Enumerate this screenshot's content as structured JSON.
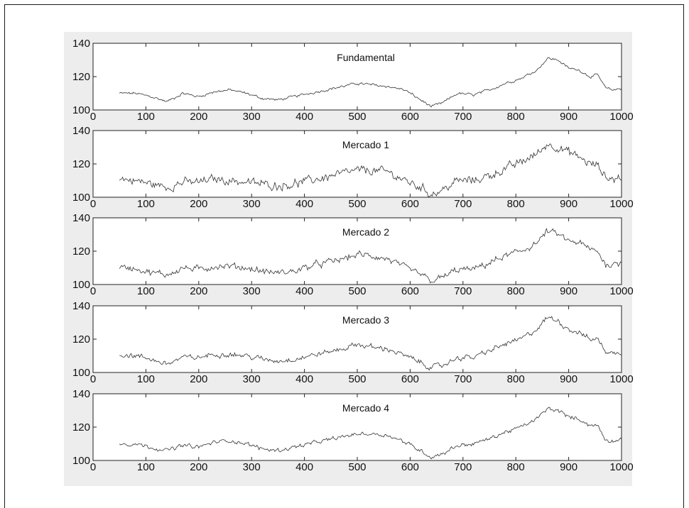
{
  "chart_data": [
    {
      "type": "line",
      "title": "Fundamental",
      "xlim": [
        0,
        1000
      ],
      "ylim": [
        100,
        140
      ],
      "xticks": [
        0,
        100,
        200,
        300,
        400,
        500,
        600,
        700,
        800,
        900,
        1000
      ],
      "yticks": [
        100,
        120,
        140
      ],
      "grid": false,
      "x": [
        50,
        80,
        110,
        140,
        170,
        200,
        230,
        260,
        290,
        320,
        350,
        380,
        410,
        440,
        470,
        500,
        530,
        560,
        590,
        620,
        640,
        660,
        690,
        720,
        750,
        780,
        810,
        840,
        860,
        880,
        900,
        920,
        940,
        955,
        970,
        985,
        1000
      ],
      "y": [
        110,
        110,
        108,
        105,
        110,
        108,
        111,
        112,
        110,
        107,
        106,
        108,
        110,
        112,
        114,
        116,
        115,
        114,
        112,
        106,
        102,
        104,
        110,
        109,
        112,
        116,
        119,
        124,
        131,
        130,
        125,
        124,
        120,
        121,
        113,
        112,
        113
      ],
      "noise": 0.8
    },
    {
      "type": "line",
      "title": "Mercado 1",
      "xlim": [
        0,
        1000
      ],
      "ylim": [
        100,
        140
      ],
      "xticks": [
        0,
        100,
        200,
        300,
        400,
        500,
        600,
        700,
        800,
        900,
        1000
      ],
      "yticks": [
        100,
        120,
        140
      ],
      "grid": false,
      "x": [
        50,
        80,
        110,
        140,
        170,
        200,
        230,
        260,
        290,
        320,
        350,
        380,
        410,
        440,
        470,
        500,
        530,
        560,
        590,
        620,
        640,
        660,
        690,
        720,
        750,
        780,
        810,
        840,
        860,
        880,
        900,
        920,
        940,
        955,
        970,
        985,
        1000
      ],
      "y": [
        111,
        110,
        108,
        106,
        109,
        109,
        111,
        110,
        109,
        108,
        107,
        108,
        110,
        112,
        114,
        116,
        116,
        115,
        110,
        106,
        102,
        104,
        110,
        110,
        113,
        117,
        121,
        126,
        132,
        130,
        127,
        124,
        120,
        119,
        112,
        111,
        112
      ],
      "noise": 2.6
    },
    {
      "type": "line",
      "title": "Mercado 2",
      "xlim": [
        0,
        1000
      ],
      "ylim": [
        100,
        140
      ],
      "xticks": [
        0,
        100,
        200,
        300,
        400,
        500,
        600,
        700,
        800,
        900,
        1000
      ],
      "yticks": [
        100,
        120,
        140
      ],
      "grid": false,
      "x": [
        50,
        80,
        110,
        140,
        170,
        200,
        230,
        260,
        290,
        320,
        350,
        380,
        410,
        440,
        470,
        500,
        530,
        560,
        590,
        620,
        640,
        660,
        690,
        720,
        750,
        780,
        810,
        840,
        860,
        880,
        900,
        920,
        940,
        955,
        970,
        985,
        1000
      ],
      "y": [
        110,
        110,
        107,
        106,
        110,
        109,
        111,
        111,
        110,
        108,
        107,
        108,
        111,
        113,
        115,
        118,
        117,
        115,
        110,
        106,
        102,
        104,
        109,
        109,
        113,
        117,
        120,
        125,
        132,
        130,
        126,
        125,
        121,
        120,
        112,
        112,
        113
      ],
      "noise": 2.0
    },
    {
      "type": "line",
      "title": "Mercado 3",
      "xlim": [
        0,
        1000
      ],
      "ylim": [
        100,
        140
      ],
      "xticks": [
        0,
        100,
        200,
        300,
        400,
        500,
        600,
        700,
        800,
        900,
        1000
      ],
      "yticks": [
        100,
        120,
        140
      ],
      "grid": false,
      "x": [
        50,
        80,
        110,
        140,
        170,
        200,
        230,
        260,
        290,
        320,
        350,
        380,
        410,
        440,
        470,
        500,
        530,
        560,
        590,
        620,
        640,
        660,
        690,
        720,
        750,
        780,
        810,
        840,
        860,
        880,
        900,
        920,
        940,
        955,
        970,
        985,
        1000
      ],
      "y": [
        111,
        110,
        108,
        105,
        109,
        109,
        111,
        111,
        110,
        108,
        107,
        108,
        110,
        112,
        114,
        117,
        115,
        114,
        110,
        106,
        103,
        104,
        109,
        109,
        113,
        117,
        120,
        126,
        133,
        131,
        126,
        124,
        120,
        120,
        113,
        111,
        112
      ],
      "noise": 1.6
    },
    {
      "type": "line",
      "title": "Mercado 4",
      "xlim": [
        0,
        1000
      ],
      "ylim": [
        100,
        140
      ],
      "xticks": [
        0,
        100,
        200,
        300,
        400,
        500,
        600,
        700,
        800,
        900,
        1000
      ],
      "yticks": [
        100,
        120,
        140
      ],
      "grid": false,
      "x": [
        50,
        80,
        110,
        140,
        170,
        200,
        230,
        260,
        290,
        320,
        350,
        380,
        410,
        440,
        470,
        500,
        530,
        560,
        590,
        620,
        640,
        660,
        690,
        720,
        750,
        780,
        810,
        840,
        860,
        880,
        900,
        920,
        940,
        955,
        970,
        985,
        1000
      ],
      "y": [
        110,
        110,
        108,
        106,
        109,
        108,
        111,
        112,
        110,
        107,
        106,
        108,
        110,
        112,
        114,
        116,
        116,
        115,
        111,
        106,
        102,
        104,
        109,
        110,
        113,
        117,
        120,
        125,
        131,
        130,
        126,
        125,
        121,
        121,
        112,
        112,
        113
      ],
      "noise": 1.2
    }
  ]
}
